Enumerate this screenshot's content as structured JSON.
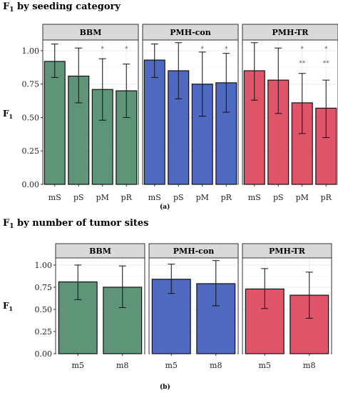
{
  "figures": {
    "a": {
      "title_main": "F",
      "title_sub": "1",
      "title_rest": " by seeding category",
      "caption": "(a)"
    },
    "b": {
      "title_main": "F",
      "title_sub": "1",
      "title_rest": " by number of tumor sites",
      "caption": "(b)"
    }
  },
  "colors": {
    "BBM": "#5e9478",
    "PMH-con": "#4f68c0",
    "PMH-TR": "#e0546a",
    "strip": "#d9d9d9",
    "grid": "#ebebeb",
    "panel_border": "#333333"
  },
  "chart_data": [
    {
      "type": "bar",
      "title": "F1 by seeding category",
      "ylabel": "F1",
      "ylim": [
        0,
        1.08
      ],
      "yticks": [
        "0.00",
        "0.25",
        "0.50",
        "0.75",
        "1.00"
      ],
      "ytick_values": [
        0,
        0.25,
        0.5,
        0.75,
        1.0
      ],
      "categories": [
        "mS",
        "pS",
        "pM",
        "pR"
      ],
      "grid": true,
      "panels": [
        {
          "name": "BBM",
          "values": [
            0.92,
            0.81,
            0.71,
            0.7
          ],
          "err_low": [
            0.8,
            0.61,
            0.48,
            0.5
          ],
          "err_high": [
            1.05,
            1.02,
            0.94,
            0.9
          ],
          "annotations": [
            [],
            [],
            [
              "*"
            ],
            [
              "*"
            ]
          ]
        },
        {
          "name": "PMH-con",
          "values": [
            0.93,
            0.85,
            0.75,
            0.76
          ],
          "err_low": [
            0.8,
            0.64,
            0.51,
            0.54
          ],
          "err_high": [
            1.05,
            1.06,
            0.99,
            0.98
          ],
          "annotations": [
            [],
            [],
            [
              "*"
            ],
            [
              "*"
            ]
          ]
        },
        {
          "name": "PMH-TR",
          "values": [
            0.85,
            0.78,
            0.61,
            0.57
          ],
          "err_low": [
            0.63,
            0.53,
            0.38,
            0.35
          ],
          "err_high": [
            1.06,
            1.02,
            0.83,
            0.78
          ],
          "annotations": [
            [],
            [],
            [
              "*",
              "**"
            ],
            [
              "*",
              "**"
            ]
          ]
        }
      ]
    },
    {
      "type": "bar",
      "title": "F1 by number of tumor sites",
      "ylabel": "F1",
      "ylim": [
        0,
        1.08
      ],
      "yticks": [
        "0.00",
        "0.25",
        "0.50",
        "0.75",
        "1.00"
      ],
      "ytick_values": [
        0,
        0.25,
        0.5,
        0.75,
        1.0
      ],
      "categories": [
        "m5",
        "m8"
      ],
      "grid": true,
      "panels": [
        {
          "name": "BBM",
          "values": [
            0.81,
            0.75
          ],
          "err_low": [
            0.61,
            0.52
          ],
          "err_high": [
            1.0,
            0.99
          ],
          "annotations": [
            [],
            []
          ]
        },
        {
          "name": "PMH-con",
          "values": [
            0.84,
            0.79
          ],
          "err_low": [
            0.68,
            0.54
          ],
          "err_high": [
            1.01,
            1.05
          ],
          "annotations": [
            [],
            []
          ]
        },
        {
          "name": "PMH-TR",
          "values": [
            0.73,
            0.66
          ],
          "err_low": [
            0.51,
            0.4
          ],
          "err_high": [
            0.96,
            0.92
          ],
          "annotations": [
            [],
            []
          ]
        }
      ]
    }
  ]
}
